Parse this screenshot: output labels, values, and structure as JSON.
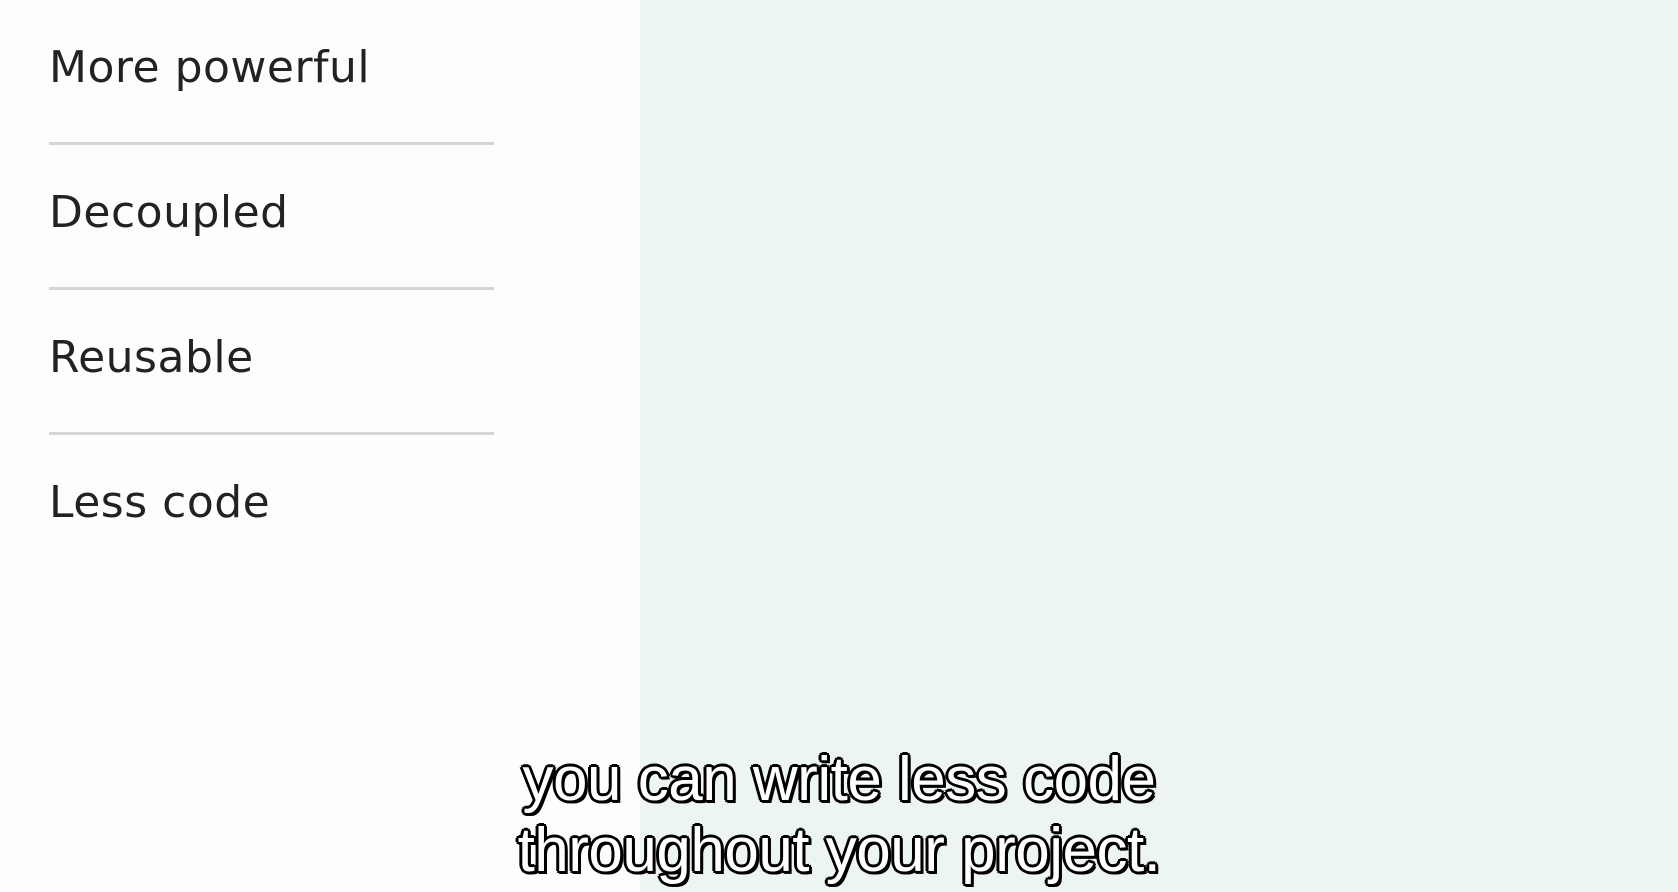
{
  "features": {
    "items": [
      {
        "label": "More powerful"
      },
      {
        "label": "Decoupled"
      },
      {
        "label": "Reusable"
      },
      {
        "label": "Less code"
      }
    ]
  },
  "caption": {
    "line1": "you can write less code",
    "line2": "throughout your project."
  },
  "colors": {
    "left_background": "#fdfdfd",
    "right_background": "#edf5f4",
    "divider": "#d3d6d8",
    "text": "#1f2326"
  }
}
